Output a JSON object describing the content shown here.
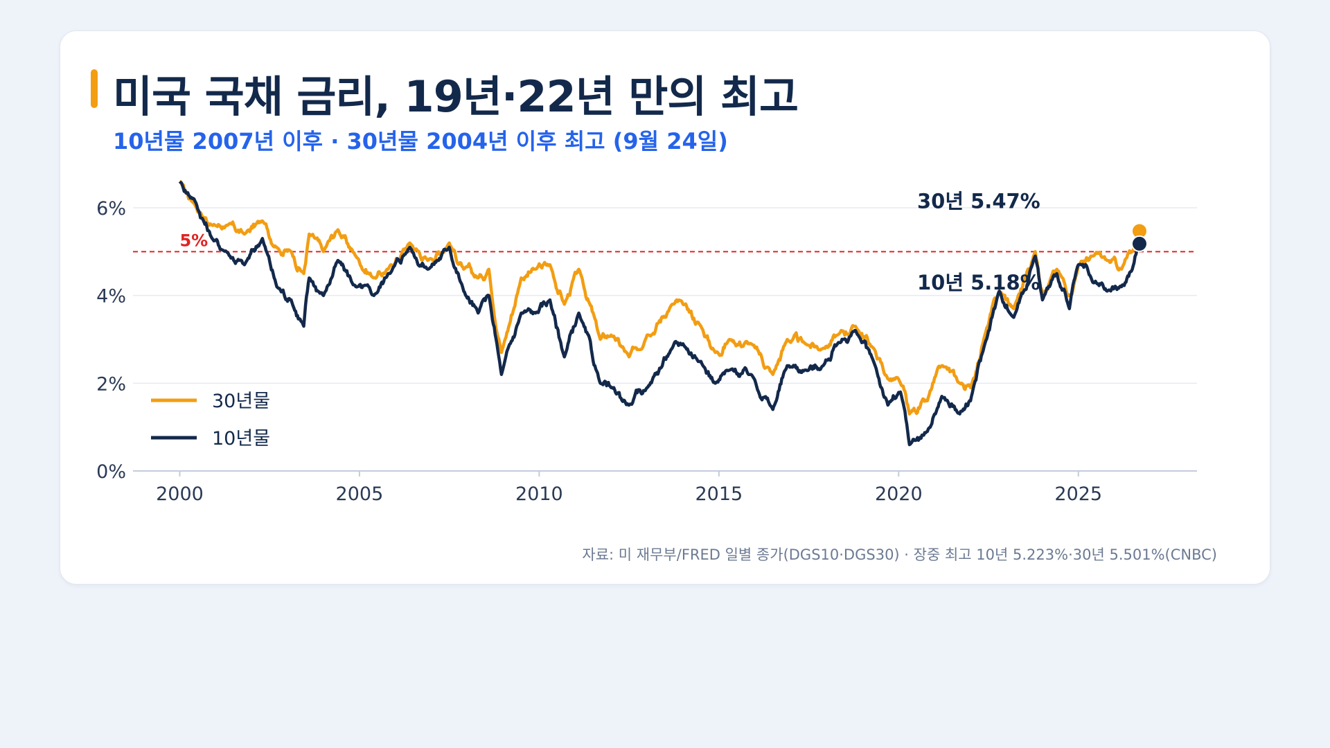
{
  "header": {
    "title": "미국 국채 금리, 19년·22년 만의 최고",
    "subtitle": "10년물 2007년 이후 · 30년물 2004년 이후 최고 (9월 24일)"
  },
  "footer": {
    "source": "자료: 미 재무부/FRED 일별 종가(DGS10·DGS30) · 장중 최고 10년 5.223%·30년 5.501%(CNBC)"
  },
  "colors": {
    "series_30y": "#f29d12",
    "series_10y": "#13294b",
    "reference_line": "#e02424",
    "accent": "#2563eb"
  },
  "chart_data": {
    "type": "line",
    "title": "미국 국채 금리, 19년·22년 만의 최고",
    "subtitle": "10년물 2007년 이후 · 30년물 2004년 이후 최고 (9월 24일)",
    "xlabel": "",
    "ylabel": "",
    "xlim": [
      1998.7,
      2028.3
    ],
    "ylim": [
      0,
      6
    ],
    "x_ticks": [
      2000,
      2005,
      2010,
      2015,
      2020,
      2025
    ],
    "y_ticks": [
      0,
      2,
      4,
      6
    ],
    "y_tick_labels": [
      "0%",
      "2%",
      "4%",
      "6%"
    ],
    "grid": "horizontal",
    "legend_position": "bottom-left",
    "reference_line": {
      "value": 5,
      "label": "5%"
    },
    "series": [
      {
        "name": "30년물",
        "color": "#f29d12",
        "points": [
          [
            2000.0,
            6.6
          ],
          [
            2000.4,
            6.1
          ],
          [
            2000.9,
            5.6
          ],
          [
            2001.3,
            5.6
          ],
          [
            2001.8,
            5.4
          ],
          [
            2002.3,
            5.7
          ],
          [
            2002.7,
            5.1
          ],
          [
            2003.1,
            5.0
          ],
          [
            2003.45,
            4.5
          ],
          [
            2003.6,
            5.4
          ],
          [
            2004.0,
            5.0
          ],
          [
            2004.4,
            5.5
          ],
          [
            2004.9,
            4.9
          ],
          [
            2005.4,
            4.4
          ],
          [
            2005.8,
            4.6
          ],
          [
            2006.4,
            5.2
          ],
          [
            2006.9,
            4.8
          ],
          [
            2007.5,
            5.2
          ],
          [
            2007.9,
            4.6
          ],
          [
            2008.3,
            4.4
          ],
          [
            2008.6,
            4.6
          ],
          [
            2008.95,
            2.7
          ],
          [
            2009.5,
            4.4
          ],
          [
            2009.9,
            4.6
          ],
          [
            2010.3,
            4.7
          ],
          [
            2010.7,
            3.8
          ],
          [
            2011.1,
            4.6
          ],
          [
            2011.7,
            3.0
          ],
          [
            2012.0,
            3.1
          ],
          [
            2012.5,
            2.6
          ],
          [
            2013.0,
            3.1
          ],
          [
            2013.7,
            3.8
          ],
          [
            2014.0,
            3.8
          ],
          [
            2014.5,
            3.3
          ],
          [
            2014.9,
            2.7
          ],
          [
            2015.3,
            3.0
          ],
          [
            2015.9,
            2.9
          ],
          [
            2016.5,
            2.2
          ],
          [
            2016.9,
            3.0
          ],
          [
            2017.4,
            2.9
          ],
          [
            2017.9,
            2.8
          ],
          [
            2018.3,
            3.1
          ],
          [
            2018.8,
            3.3
          ],
          [
            2019.3,
            2.8
          ],
          [
            2019.7,
            2.1
          ],
          [
            2020.05,
            2.0
          ],
          [
            2020.3,
            1.3
          ],
          [
            2020.8,
            1.6
          ],
          [
            2021.2,
            2.4
          ],
          [
            2021.7,
            2.0
          ],
          [
            2022.0,
            1.9
          ],
          [
            2022.4,
            3.1
          ],
          [
            2022.8,
            4.1
          ],
          [
            2023.2,
            3.7
          ],
          [
            2023.8,
            5.0
          ],
          [
            2024.0,
            4.1
          ],
          [
            2024.4,
            4.6
          ],
          [
            2024.75,
            4.0
          ],
          [
            2025.0,
            4.7
          ],
          [
            2025.4,
            4.9
          ],
          [
            2025.8,
            4.8
          ],
          [
            2026.2,
            4.6
          ],
          [
            2026.5,
            5.0
          ],
          [
            2026.7,
            5.47
          ]
        ]
      },
      {
        "name": "10년물",
        "color": "#13294b",
        "points": [
          [
            2000.0,
            6.6
          ],
          [
            2000.4,
            6.2
          ],
          [
            2000.9,
            5.3
          ],
          [
            2001.3,
            5.0
          ],
          [
            2001.8,
            4.7
          ],
          [
            2002.3,
            5.3
          ],
          [
            2002.7,
            4.2
          ],
          [
            2003.1,
            3.9
          ],
          [
            2003.45,
            3.3
          ],
          [
            2003.6,
            4.4
          ],
          [
            2004.0,
            4.0
          ],
          [
            2004.4,
            4.8
          ],
          [
            2004.9,
            4.2
          ],
          [
            2005.4,
            4.0
          ],
          [
            2005.8,
            4.5
          ],
          [
            2006.4,
            5.1
          ],
          [
            2006.9,
            4.6
          ],
          [
            2007.5,
            5.1
          ],
          [
            2007.9,
            4.1
          ],
          [
            2008.3,
            3.6
          ],
          [
            2008.6,
            4.0
          ],
          [
            2008.95,
            2.2
          ],
          [
            2009.5,
            3.6
          ],
          [
            2009.9,
            3.6
          ],
          [
            2010.3,
            3.9
          ],
          [
            2010.7,
            2.6
          ],
          [
            2011.1,
            3.6
          ],
          [
            2011.7,
            2.0
          ],
          [
            2012.0,
            1.9
          ],
          [
            2012.5,
            1.5
          ],
          [
            2013.0,
            1.9
          ],
          [
            2013.7,
            2.8
          ],
          [
            2014.0,
            2.9
          ],
          [
            2014.5,
            2.5
          ],
          [
            2014.9,
            2.0
          ],
          [
            2015.3,
            2.3
          ],
          [
            2015.9,
            2.2
          ],
          [
            2016.5,
            1.4
          ],
          [
            2016.9,
            2.4
          ],
          [
            2017.4,
            2.3
          ],
          [
            2017.9,
            2.4
          ],
          [
            2018.3,
            2.9
          ],
          [
            2018.8,
            3.2
          ],
          [
            2019.3,
            2.5
          ],
          [
            2019.7,
            1.5
          ],
          [
            2020.05,
            1.8
          ],
          [
            2020.3,
            0.6
          ],
          [
            2020.8,
            0.9
          ],
          [
            2021.2,
            1.7
          ],
          [
            2021.7,
            1.3
          ],
          [
            2022.0,
            1.6
          ],
          [
            2022.4,
            2.9
          ],
          [
            2022.8,
            4.1
          ],
          [
            2023.2,
            3.5
          ],
          [
            2023.8,
            4.9
          ],
          [
            2024.0,
            3.9
          ],
          [
            2024.4,
            4.5
          ],
          [
            2024.75,
            3.7
          ],
          [
            2025.0,
            4.7
          ],
          [
            2025.4,
            4.3
          ],
          [
            2025.8,
            4.1
          ],
          [
            2026.2,
            4.2
          ],
          [
            2026.5,
            4.6
          ],
          [
            2026.7,
            5.18
          ]
        ]
      }
    ],
    "annotations": [
      {
        "series": "30년물",
        "text": "30년 5.47%"
      },
      {
        "series": "10년물",
        "text": "10년 5.18%"
      }
    ]
  }
}
